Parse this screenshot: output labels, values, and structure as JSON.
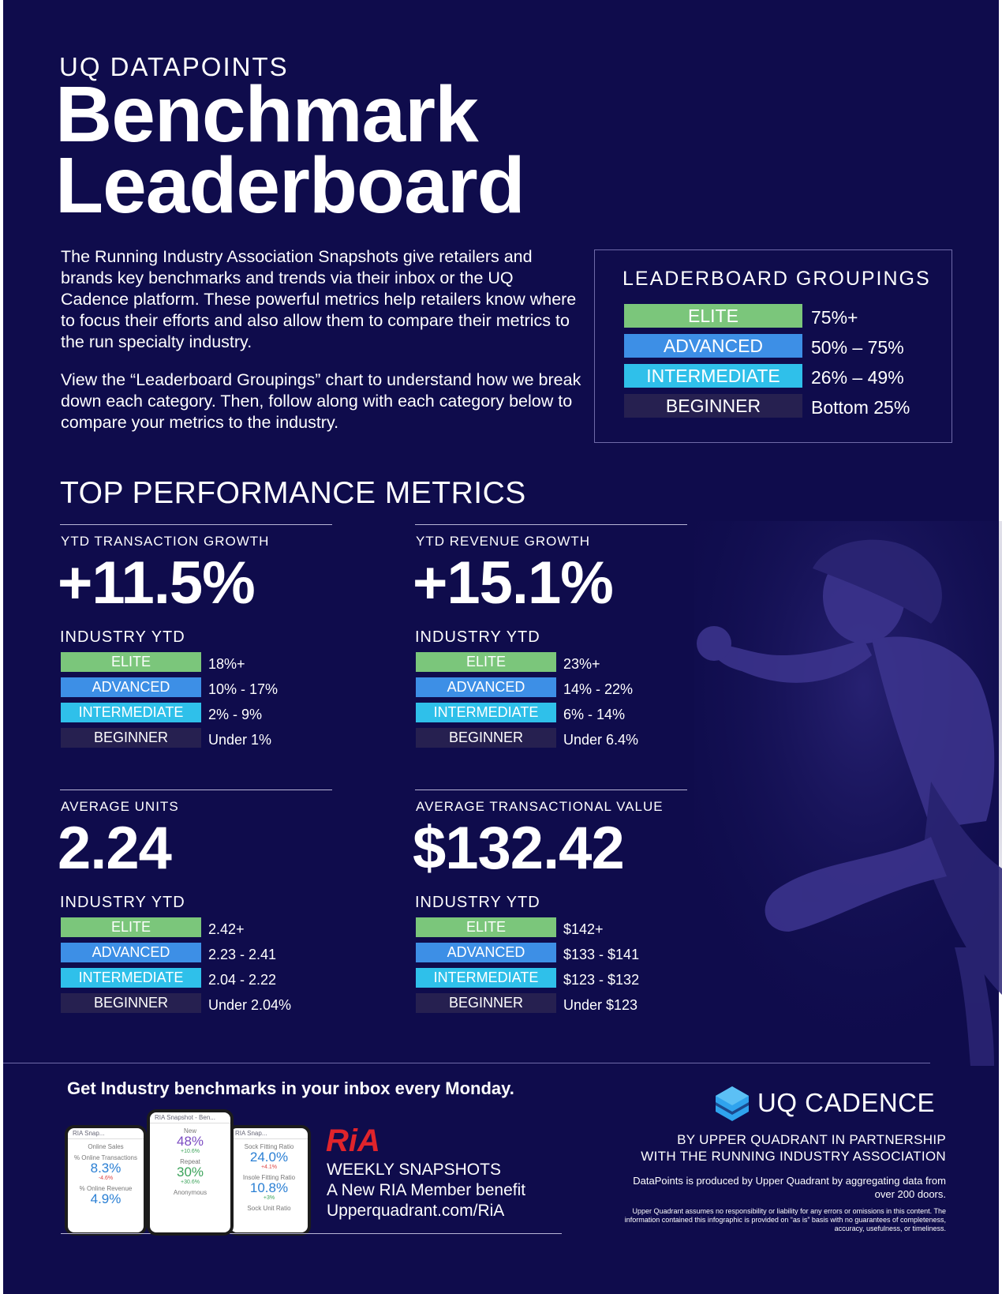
{
  "header": {
    "eyebrow": "UQ DATAPOINTS",
    "title_line1": "Benchmark",
    "title_line2": "Leaderboard"
  },
  "intro": {
    "paragraph1": "The Running Industry Association Snapshots give retailers and brands key benchmarks and trends via their inbox or the UQ Cadence platform. These powerful metrics help retailers know where to focus their efforts and also allow them to compare their metrics to the run specialty industry.",
    "paragraph2": "View the “Leaderboard Groupings” chart to understand how we break down each category. Then, follow along with each category below to compare your metrics to the industry."
  },
  "groupings": {
    "title": "LEADERBOARD GROUPINGS",
    "rows": [
      {
        "label": "ELITE",
        "value": "75%+"
      },
      {
        "label": "ADVANCED",
        "value": "50% – 75%"
      },
      {
        "label": "INTERMEDIATE",
        "value": "26% – 49%"
      },
      {
        "label": "BEGINNER",
        "value": "Bottom 25%"
      }
    ]
  },
  "colors": {
    "background": "#0f0c4c",
    "elite": "#7bc67b",
    "advanced": "#3d8fe6",
    "intermediate": "#2fc0ea",
    "beginner": "#262050"
  },
  "section_title": "TOP PERFORMANCE METRICS",
  "metrics": [
    {
      "label": "YTD TRANSACTION GROWTH",
      "value": "+11.5%",
      "industry_label": "INDUSTRY YTD",
      "tiers": [
        {
          "label": "ELITE",
          "value": "18%+"
        },
        {
          "label": "ADVANCED",
          "value": "10% - 17%"
        },
        {
          "label": "INTERMEDIATE",
          "value": "2% - 9%"
        },
        {
          "label": "BEGINNER",
          "value": "Under 1%"
        }
      ]
    },
    {
      "label": "YTD REVENUE GROWTH",
      "value": "+15.1%",
      "industry_label": "INDUSTRY YTD",
      "tiers": [
        {
          "label": "ELITE",
          "value": "23%+"
        },
        {
          "label": "ADVANCED",
          "value": "14% - 22%"
        },
        {
          "label": "INTERMEDIATE",
          "value": "6% - 14%"
        },
        {
          "label": "BEGINNER",
          "value": "Under 6.4%"
        }
      ]
    },
    {
      "label": "AVERAGE UNITS",
      "value": "2.24",
      "industry_label": "INDUSTRY YTD",
      "tiers": [
        {
          "label": "ELITE",
          "value": "2.42+"
        },
        {
          "label": "ADVANCED",
          "value": "2.23 - 2.41"
        },
        {
          "label": "INTERMEDIATE",
          "value": "2.04 - 2.22"
        },
        {
          "label": "BEGINNER",
          "value": "Under 2.04%"
        }
      ]
    },
    {
      "label": "AVERAGE TRANSACTIONAL VALUE",
      "value": "$132.42",
      "industry_label": "INDUSTRY YTD",
      "tiers": [
        {
          "label": "ELITE",
          "value": "$142+"
        },
        {
          "label": "ADVANCED",
          "value": "$133 - $141"
        },
        {
          "label": "INTERMEDIATE",
          "value": "$123 - $132"
        },
        {
          "label": "BEGINNER",
          "value": "Under $123"
        }
      ]
    }
  ],
  "footer": {
    "cta": "Get Industry benchmarks in your inbox every Monday.",
    "phones": {
      "left": {
        "title": "RIA Snap...",
        "l1": "Online Sales",
        "l2": "% Online Transactions",
        "v2": "8.3%",
        "d2": "-4.6%",
        "l3": "% Online Revenue",
        "v3": "4.9%"
      },
      "center": {
        "title": "RIA Snapshot - Ben...",
        "l1": "New",
        "v1": "48%",
        "d1": "+10.6%",
        "l2": "Repeat",
        "v2": "30%",
        "d2": "+30.6%",
        "l3": "Anonymous"
      },
      "right": {
        "title": "RIA Snap...",
        "l1": "Sock Fitting Ratio",
        "v1": "24.0%",
        "d1": "+4.1%",
        "l2": "Insole Fitting Ratio",
        "v2": "10.8%",
        "d2": "+3%",
        "l3": "Sock Unit Ratio"
      }
    },
    "ria_logo_text": "RiA",
    "ria_line1": "WEEKLY SNAPSHOTS",
    "ria_line2": "A New RIA Member benefit",
    "ria_line3": "Upperquadrant.com/RiA",
    "brand_icon": "hexagon-stack-icon",
    "brand_name": "UQ CADENCE",
    "partner_line1": "BY UPPER QUADRANT IN PARTNERSHIP",
    "partner_line2": "WITH THE RUNNING INDUSTRY ASSOCIATION",
    "produced": "DataPoints is produced by Upper Quadrant by aggregating data from over 200 doors.",
    "disclaimer": "Upper Quadrant assumes no responsibility or liability for any errors or omissions in this content. The information contained this infographic is provided on “as is” basis with no guarantees of completeness, accuracy, usefulness, or timeliness."
  }
}
